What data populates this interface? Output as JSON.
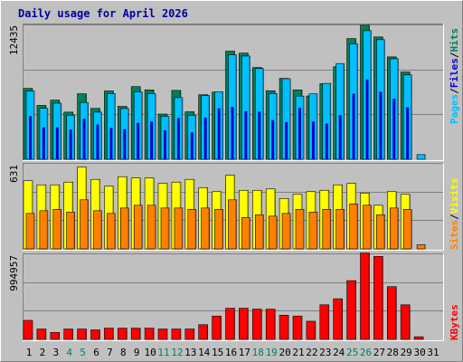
{
  "chart_data": {
    "type": "bar",
    "title": "Daily usage for April 2026",
    "x": [
      1,
      2,
      3,
      4,
      5,
      6,
      7,
      8,
      9,
      10,
      11,
      12,
      13,
      14,
      15,
      16,
      17,
      18,
      19,
      20,
      21,
      22,
      23,
      24,
      25,
      26,
      27,
      28,
      29,
      30,
      31
    ],
    "weekend_days": [
      4,
      5,
      11,
      12,
      18,
      19,
      25,
      26
    ],
    "hits_panel": {
      "ymax_label": "12435",
      "ymax": 12435,
      "side_labels": [
        "Pages",
        "Files",
        "Hits"
      ],
      "series": [
        {
          "name": "Hits",
          "values": [
            6540,
            4970,
            5450,
            4350,
            6040,
            4690,
            6300,
            4880,
            6700,
            6400,
            4170,
            6350,
            4380,
            5950,
            6200,
            9970,
            9790,
            8460,
            6320,
            7460,
            6400,
            5840,
            6970,
            8530,
            11130,
            12360,
            11280,
            9440,
            8050,
            0,
            0
          ]
        },
        {
          "name": "Files",
          "values": [
            6290,
            4700,
            5170,
            4070,
            5240,
            4350,
            6050,
            4680,
            6210,
            6050,
            3970,
            5690,
            4050,
            5880,
            6230,
            9630,
            9520,
            8370,
            6060,
            7430,
            5830,
            6040,
            7000,
            8830,
            10640,
            11860,
            11030,
            9270,
            7780,
            430,
            0
          ]
        },
        {
          "name": "Pages",
          "values": [
            3980,
            2950,
            2950,
            2730,
            3730,
            3200,
            2890,
            2770,
            3350,
            3480,
            2660,
            3800,
            2480,
            3840,
            4700,
            4830,
            4440,
            4390,
            3620,
            3430,
            4740,
            3480,
            3290,
            4060,
            6050,
            7360,
            6230,
            5590,
            4790,
            0,
            0
          ]
        }
      ]
    },
    "visits_panel": {
      "ymax_label": "631",
      "ymax": 631,
      "side_labels": [
        "Sites",
        "Visits"
      ],
      "series": [
        {
          "name": "Visits",
          "values": [
            500,
            470,
            470,
            490,
            600,
            510,
            460,
            530,
            520,
            520,
            480,
            490,
            510,
            450,
            420,
            540,
            430,
            430,
            440,
            370,
            400,
            420,
            430,
            470,
            480,
            410,
            320,
            420,
            400,
            0,
            0
          ]
        },
        {
          "name": "Sites",
          "values": [
            260,
            280,
            290,
            270,
            360,
            280,
            260,
            300,
            320,
            320,
            300,
            300,
            290,
            300,
            290,
            360,
            230,
            250,
            240,
            260,
            290,
            270,
            290,
            290,
            330,
            320,
            250,
            300,
            290,
            30,
            0
          ]
        }
      ]
    },
    "kbytes_panel": {
      "ymax_label": "994957",
      "ymax": 994957,
      "side_labels": [
        "KBytes"
      ],
      "series": [
        {
          "name": "KBytes",
          "values": [
            220000,
            120000,
            80000,
            120000,
            120000,
            110000,
            130000,
            130000,
            130000,
            130000,
            120000,
            120000,
            120000,
            170000,
            270000,
            360000,
            360000,
            350000,
            350000,
            280000,
            270000,
            210000,
            400000,
            470000,
            680000,
            1000000,
            960000,
            610000,
            400000,
            30000,
            0
          ]
        }
      ]
    },
    "colors": {
      "hits": "#00805c",
      "files": "#00c0ff",
      "pages": "#0000d0",
      "visits": "#ffff00",
      "sites": "#ff8000",
      "kbytes": "#ff0000",
      "plot_bg": "#c0c0c0",
      "title": "#0000a0",
      "weekend_label": "#00805c"
    }
  }
}
